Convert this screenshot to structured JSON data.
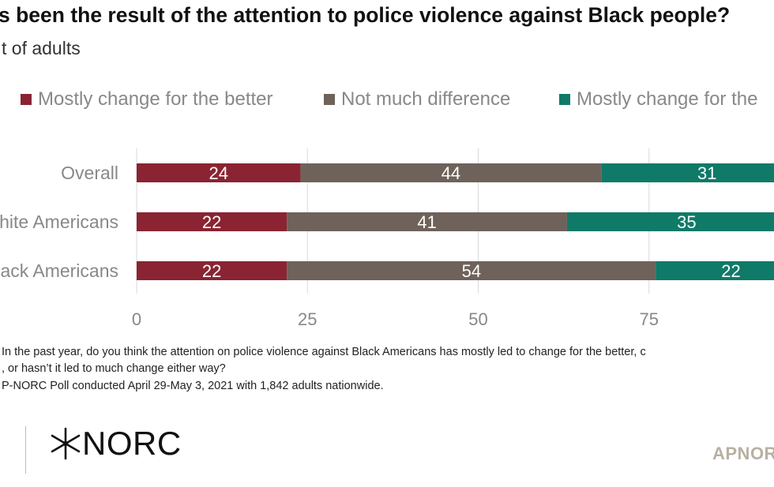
{
  "title": "s been the result of the attention to police violence against Black people?",
  "subtitle": "t of adults",
  "colors": {
    "better": "#8a2432",
    "nodiff": "#6e625a",
    "worse": "#0f7a68"
  },
  "legend": [
    {
      "label": "Mostly change for the better",
      "color": "#8a2432"
    },
    {
      "label": "Not much difference",
      "color": "#6e625a"
    },
    {
      "label": "Mostly change for the",
      "color": "#0f7a68"
    }
  ],
  "chart_data": {
    "type": "bar",
    "orientation": "horizontal",
    "stacked": true,
    "categories": [
      "Overall",
      "hite Americans",
      "ack Americans"
    ],
    "series": [
      {
        "name": "Mostly change for the better",
        "values": [
          24,
          22,
          22
        ]
      },
      {
        "name": "Not much difference",
        "values": [
          44,
          41,
          54
        ]
      },
      {
        "name": "Mostly change for the",
        "values": [
          31,
          35,
          22
        ]
      }
    ],
    "xticks": [
      0,
      25,
      50,
      75
    ],
    "xlim": [
      0,
      100
    ],
    "grid": true,
    "legend_position": "top"
  },
  "notes": [
    " In the past year, do you think the attention on police violence against Black Americans has mostly led to change for the better, c",
    ", or hasn’t it led to much change either way?",
    "P-NORC Poll conducted April 29-May 3, 2021 with 1,842 adults nationwide."
  ],
  "logo_text": "NORC",
  "footer_brand": "APNOR"
}
